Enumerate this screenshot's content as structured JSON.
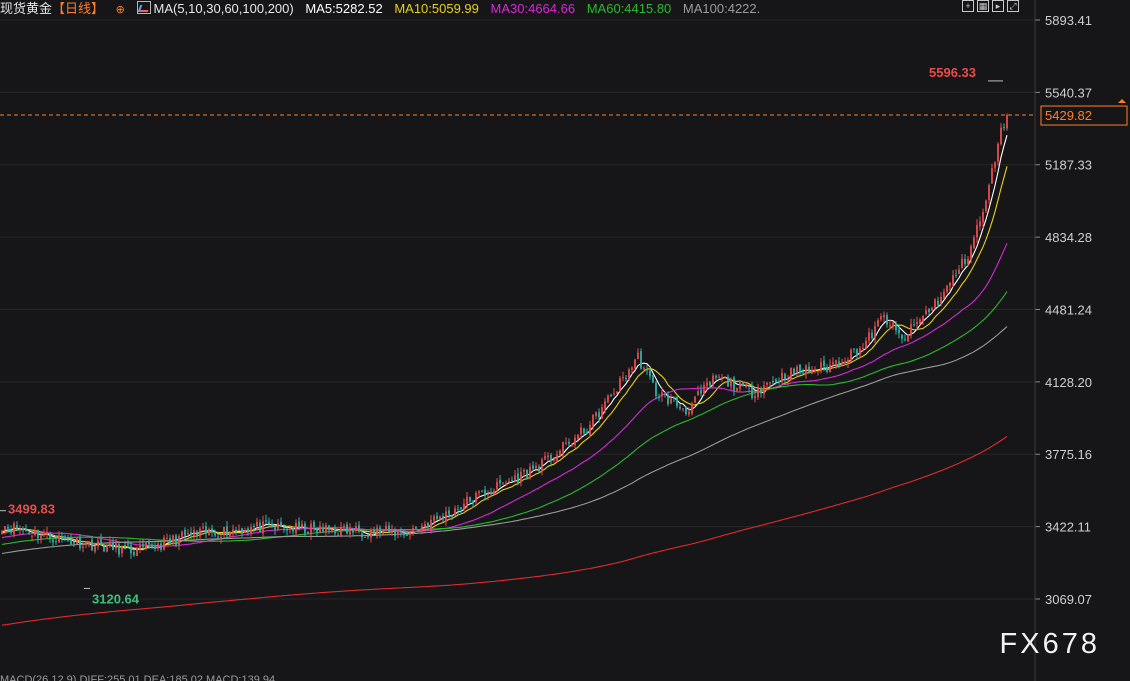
{
  "header": {
    "instrument": "现货黄金",
    "period": "【日线】",
    "ma_params": "MA(5,10,30,60,100,200)",
    "ma_values": [
      {
        "label": "MA5:5282.52",
        "color": "#ffffff"
      },
      {
        "label": "MA10:5059.99",
        "color": "#e6d21a"
      },
      {
        "label": "MA30:4664.66",
        "color": "#d62ad6"
      },
      {
        "label": "MA60:4415.80",
        "color": "#2eb82e"
      },
      {
        "label": "MA100:4222.",
        "color": "#9a9a9a"
      }
    ],
    "period_color": "#ff7d2d"
  },
  "toolbar": {
    "icons": [
      "expand-icon",
      "layout-icon",
      "play-icon",
      "fit-icon"
    ]
  },
  "current_price": {
    "label": "5429.82",
    "value": 5429.82,
    "color": "#ff7d2d"
  },
  "watermark": "FX678",
  "footer": {
    "text": "MACD(26,12,9) DIFF:255.01 DEA:185.02 MACD:139.94"
  },
  "chart_data": {
    "type": "candlestick",
    "y_axis_ticks": [
      5893.41,
      5540.37,
      5187.33,
      4834.28,
      4481.24,
      4128.2,
      3775.16,
      3422.11,
      3069.07
    ],
    "y_axis_labels": [
      "5893.41",
      "5540.37",
      "5187.33",
      "4834.28",
      "4481.24",
      "4128.20",
      "3775.16",
      "3422.11",
      "3069.07"
    ],
    "annotations": [
      {
        "label": "5596.33",
        "value": 5596.33,
        "type": "high",
        "color": "#e84d4d"
      },
      {
        "label": "3499.83",
        "value": 3499.83,
        "type": "local-high",
        "color": "#e84d4d"
      },
      {
        "label": "3120.64",
        "value": 3120.64,
        "type": "low",
        "color": "#3fbf7a"
      }
    ],
    "ohlc_approx_anchors": [
      {
        "x": 0,
        "close": 3430
      },
      {
        "x": 20,
        "close": 3360
      },
      {
        "x": 45,
        "close": 3300
      },
      {
        "x": 62,
        "close": 3380
      },
      {
        "x": 85,
        "close": 3420
      },
      {
        "x": 110,
        "close": 3405
      },
      {
        "x": 135,
        "close": 3395
      },
      {
        "x": 148,
        "close": 3480
      },
      {
        "x": 157,
        "close": 3560
      },
      {
        "x": 170,
        "close": 3650
      },
      {
        "x": 182,
        "close": 3745
      },
      {
        "x": 195,
        "close": 3900
      },
      {
        "x": 205,
        "close": 4100
      },
      {
        "x": 212,
        "close": 4250
      },
      {
        "x": 218,
        "close": 4080
      },
      {
        "x": 228,
        "close": 3990
      },
      {
        "x": 238,
        "close": 4150
      },
      {
        "x": 250,
        "close": 4080
      },
      {
        "x": 262,
        "close": 4170
      },
      {
        "x": 275,
        "close": 4200
      },
      {
        "x": 287,
        "close": 4300
      },
      {
        "x": 294,
        "close": 4450
      },
      {
        "x": 300,
        "close": 4330
      },
      {
        "x": 307,
        "close": 4450
      },
      {
        "x": 314,
        "close": 4560
      },
      {
        "x": 322,
        "close": 4750
      },
      {
        "x": 328,
        "close": 5000
      },
      {
        "x": 332,
        "close": 5300
      },
      {
        "x": 335,
        "close": 5429.82
      }
    ],
    "moving_averages": [
      {
        "name": "MA5",
        "color": "#ffffff"
      },
      {
        "name": "MA10",
        "color": "#e6d21a"
      },
      {
        "name": "MA30",
        "color": "#d62ad6"
      },
      {
        "name": "MA60",
        "color": "#2eb82e"
      },
      {
        "name": "MA100",
        "color": "#9a9a9a"
      },
      {
        "name": "MA200",
        "color": "#e02b2b"
      }
    ],
    "up_color": "#e84d4d",
    "down_color": "#2fb3a8",
    "ylim": [
      2950,
      5980
    ]
  }
}
